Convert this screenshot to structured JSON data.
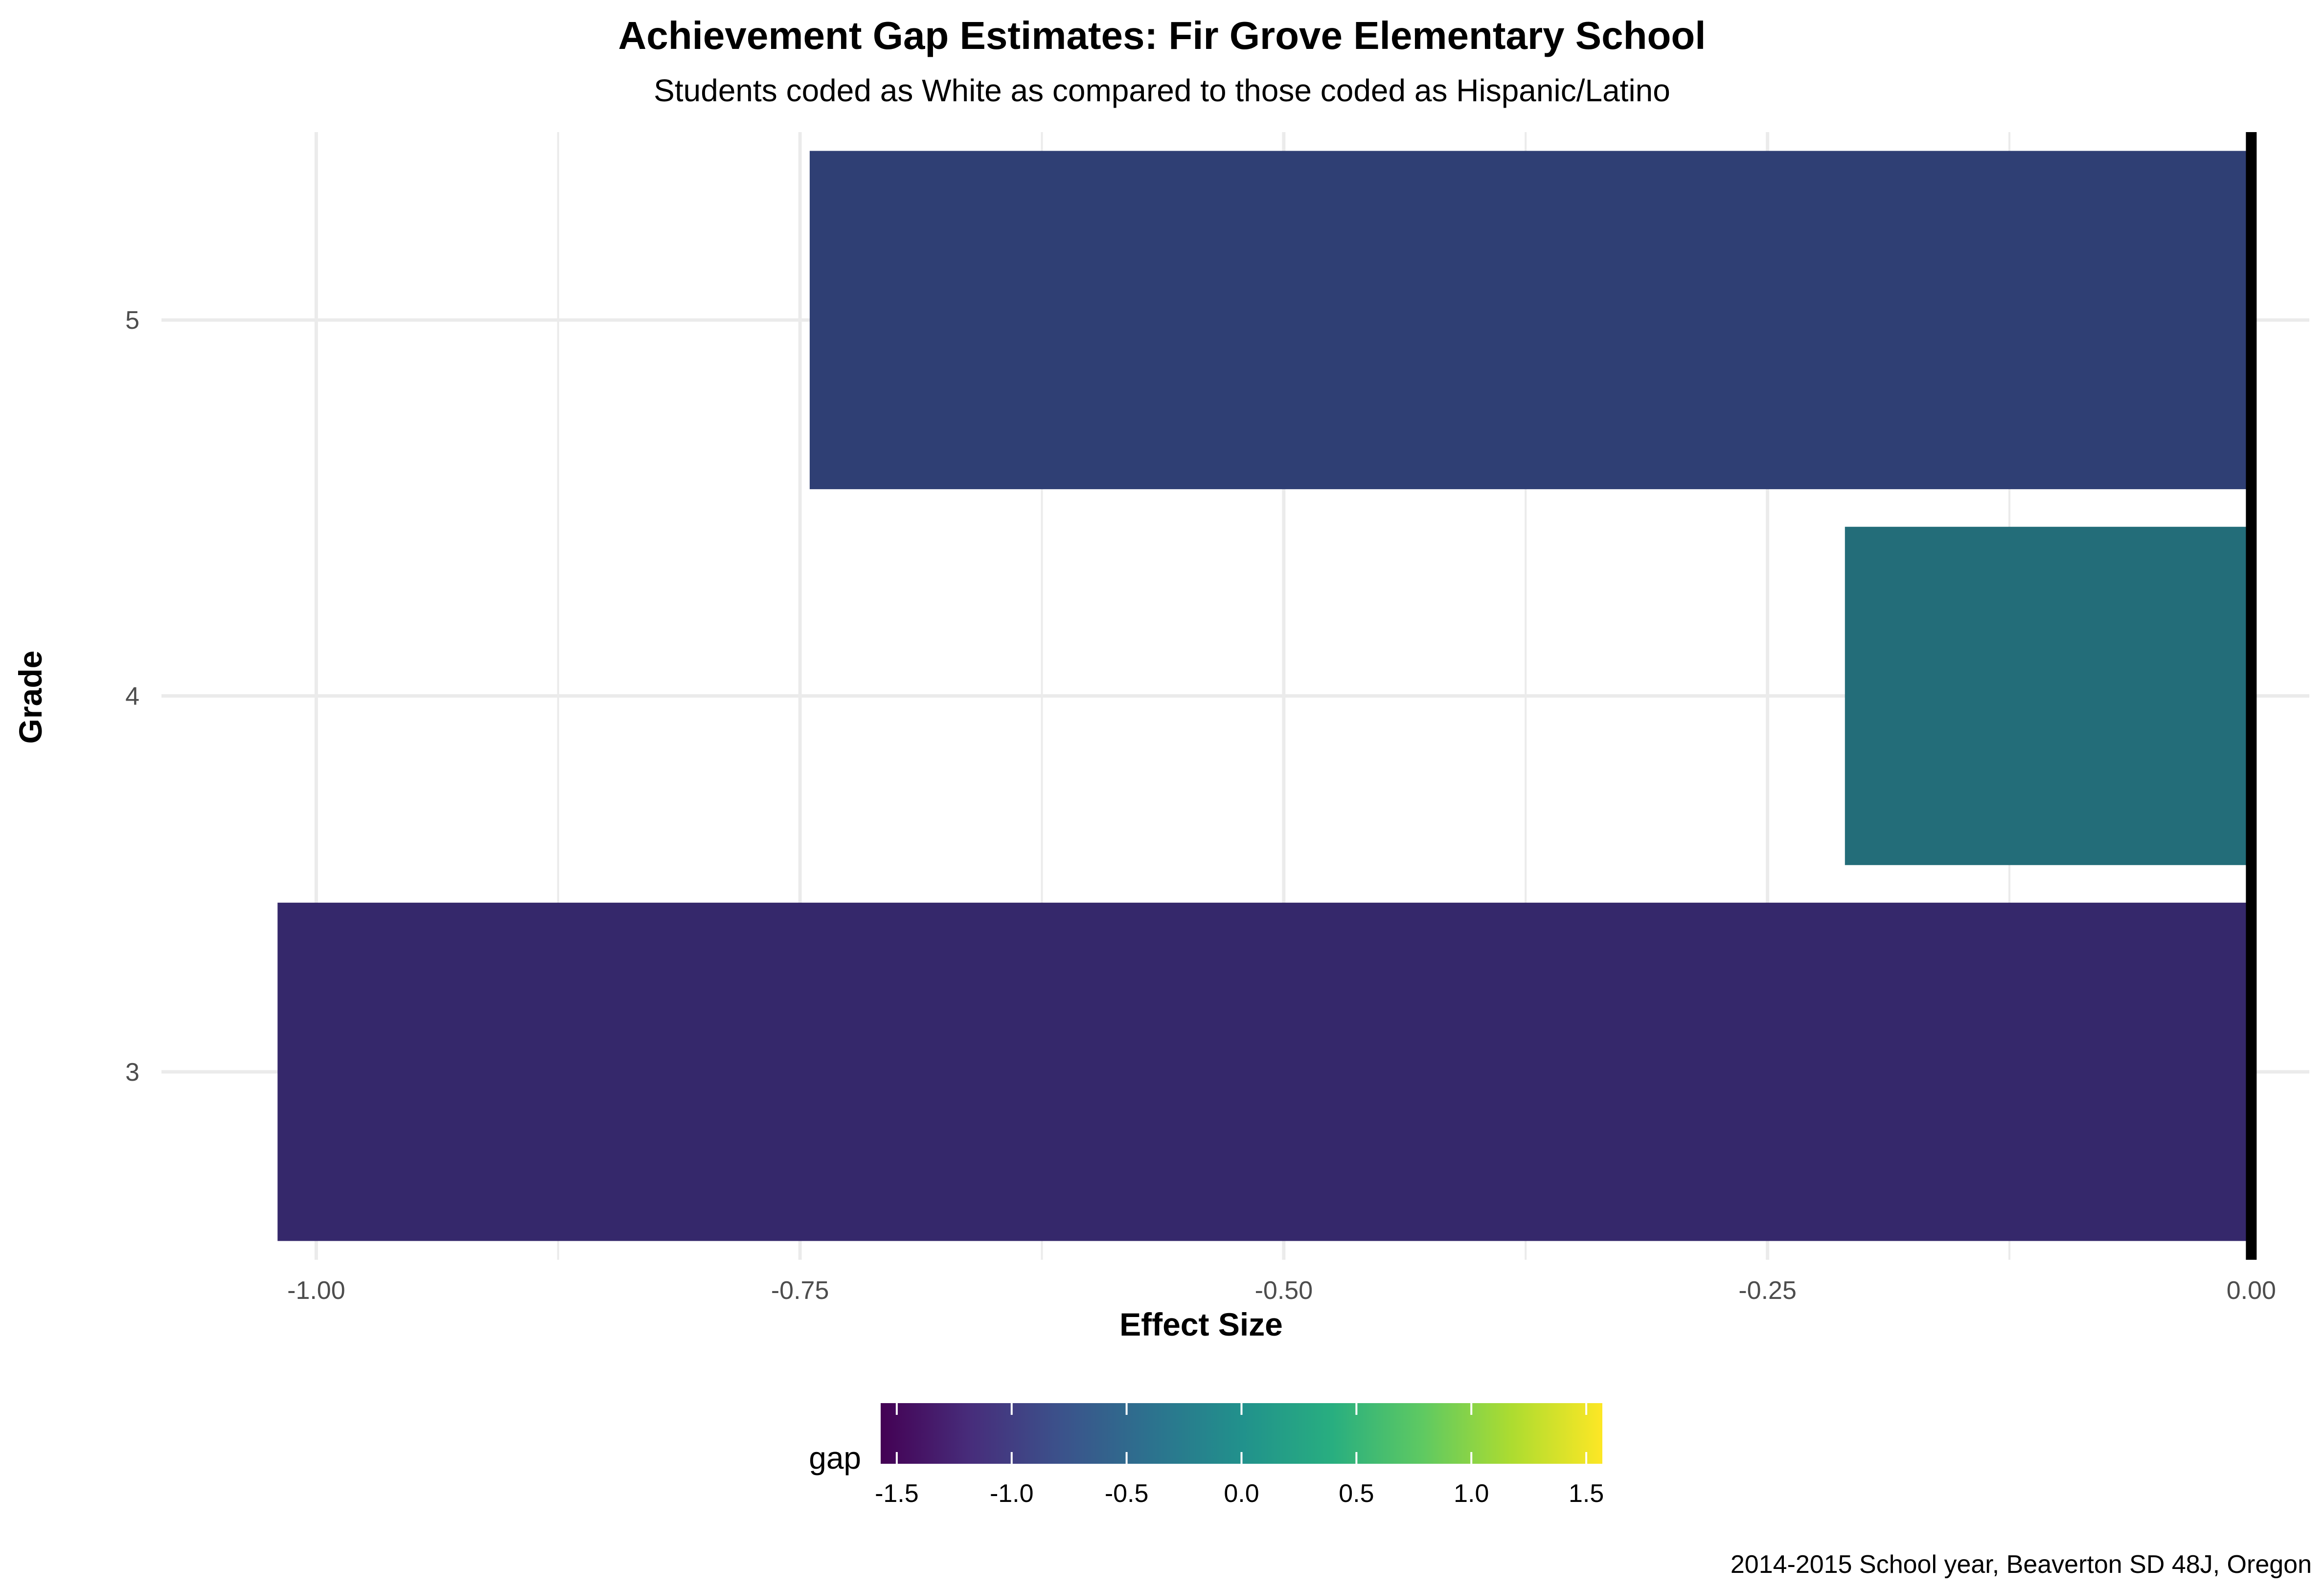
{
  "chart_data": {
    "type": "bar",
    "orientation": "horizontal",
    "title": "Achievement Gap Estimates: Fir Grove Elementary School",
    "subtitle": "Students coded as White as compared to those coded as Hispanic/Latino",
    "caption": "2014-2015 School year, Beaverton SD 48J, Oregon",
    "xlabel": "Effect Size",
    "ylabel": "Grade",
    "xlim": [
      -1.08,
      0.03
    ],
    "x_ticks": [
      -1.0,
      -0.75,
      -0.5,
      -0.25,
      0.0
    ],
    "x_tick_labels": [
      "-1.00",
      "-0.75",
      "-0.50",
      "-0.25",
      "0.00"
    ],
    "categories": [
      "3",
      "4",
      "5"
    ],
    "values": [
      -1.02,
      -0.21,
      -0.745
    ],
    "bar_colors": [
      "#35286b",
      "#236d79",
      "#2f3f74"
    ],
    "reference_line": 0,
    "grid": true,
    "legend": {
      "title": "gap",
      "type": "colorbar",
      "palette": "viridis",
      "position": "bottom",
      "limits": [
        -1.57,
        1.57
      ],
      "ticks": [
        -1.5,
        -1.0,
        -0.5,
        0.0,
        0.5,
        1.0,
        1.5
      ],
      "tick_labels": [
        "-1.5",
        "-1.0",
        "-0.5",
        "0.0",
        "0.5",
        "1.0",
        "1.5"
      ]
    }
  }
}
